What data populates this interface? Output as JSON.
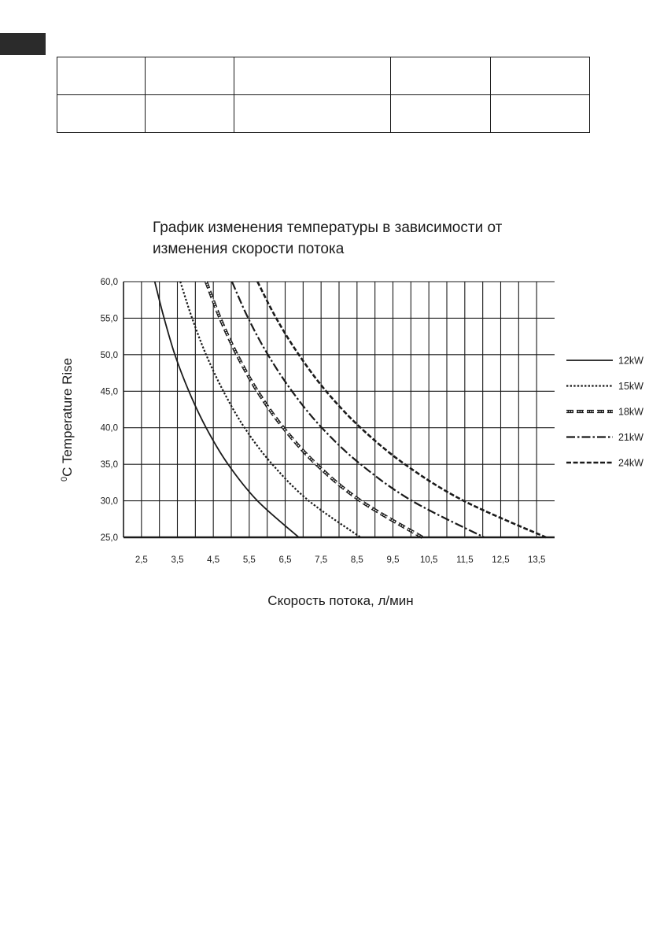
{
  "header_table": {
    "rows": [
      [
        "",
        "",
        "",
        "",
        ""
      ],
      [
        "",
        "",
        "",
        "",
        ""
      ]
    ]
  },
  "chart_data": {
    "type": "line",
    "title": "График изменения температуры в зависимости от изменения скорости потока",
    "title_lines": [
      "График изменения температуры в зависимости от",
      "изменения скорости потока"
    ],
    "xlabel": "Скорость потока, л/мин",
    "ylabel": "Temperature Rise",
    "ylabel_unit": "0C",
    "xlim": [
      2.0,
      14.0
    ],
    "ylim": [
      25.0,
      60.0
    ],
    "x_ticks": [
      "2,5",
      "3,5",
      "4,5",
      "5,5",
      "6,5",
      "7,5",
      "8,5",
      "9,5",
      "10,5",
      "11,5",
      "12,5",
      "13,5"
    ],
    "x_tick_values": [
      2.5,
      3.5,
      4.5,
      5.5,
      6.5,
      7.5,
      8.5,
      9.5,
      10.5,
      11.5,
      12.5,
      13.5
    ],
    "y_ticks": [
      "60,0",
      "55,0",
      "50,0",
      "45,0",
      "40,0",
      "35,0",
      "30,0",
      "25,0"
    ],
    "y_tick_values": [
      60,
      55,
      50,
      45,
      40,
      35,
      30,
      25
    ],
    "grid": true,
    "legend_position": "right",
    "series": [
      {
        "name": "12kW",
        "style": "solid",
        "points": [
          [
            2.87,
            60
          ],
          [
            3.13,
            55
          ],
          [
            3.43,
            50
          ],
          [
            3.82,
            45
          ],
          [
            4.3,
            40
          ],
          [
            4.91,
            35
          ],
          [
            5.73,
            30
          ],
          [
            6.88,
            25
          ]
        ]
      },
      {
        "name": "15kW",
        "style": "dotted",
        "points": [
          [
            3.58,
            60
          ],
          [
            3.91,
            55
          ],
          [
            4.3,
            50
          ],
          [
            4.78,
            45
          ],
          [
            5.37,
            40
          ],
          [
            6.14,
            35
          ],
          [
            7.16,
            30
          ],
          [
            8.6,
            25
          ]
        ]
      },
      {
        "name": "18kW",
        "style": "hollow-dash",
        "points": [
          [
            4.3,
            60
          ],
          [
            4.69,
            55
          ],
          [
            5.16,
            50
          ],
          [
            5.73,
            45
          ],
          [
            6.45,
            40
          ],
          [
            7.37,
            35
          ],
          [
            8.6,
            30
          ],
          [
            10.32,
            25
          ]
        ]
      },
      {
        "name": "21kW",
        "style": "dash-dot",
        "points": [
          [
            5.02,
            60
          ],
          [
            5.47,
            55
          ],
          [
            6.02,
            50
          ],
          [
            6.69,
            45
          ],
          [
            7.52,
            40
          ],
          [
            8.6,
            35
          ],
          [
            10.03,
            30
          ],
          [
            12.04,
            25
          ]
        ]
      },
      {
        "name": "24kW",
        "style": "dashed",
        "points": [
          [
            5.73,
            60
          ],
          [
            6.25,
            55
          ],
          [
            6.88,
            50
          ],
          [
            7.64,
            45
          ],
          [
            8.6,
            40
          ],
          [
            9.83,
            35
          ],
          [
            11.47,
            30
          ],
          [
            13.76,
            25
          ]
        ]
      }
    ]
  }
}
